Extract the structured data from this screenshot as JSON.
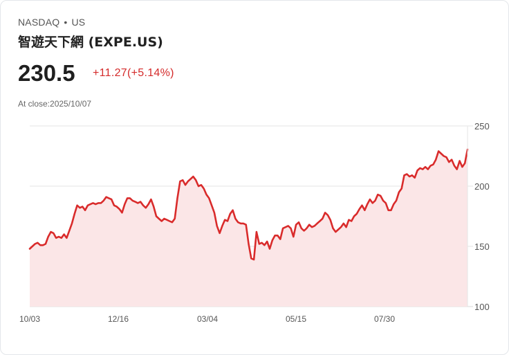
{
  "header": {
    "exchange": "NASDAQ",
    "separator": "•",
    "region": "US",
    "title": "智遊天下網 (EXPE.US)",
    "price": "230.5",
    "change": "+11.27(+5.14%)",
    "close_label": "At close:2025/10/07"
  },
  "colors": {
    "line": "#d92b2b",
    "fill": "#fbe6e7",
    "grid": "#e3e3e3",
    "change": "#d42a2a"
  },
  "chart_data": {
    "type": "area",
    "title": "智遊天下網 (EXPE.US)",
    "xlabel": "",
    "ylabel": "",
    "ylim": [
      100,
      250
    ],
    "yticks": [
      100,
      150,
      200,
      250
    ],
    "xticks": [
      "10/03",
      "12/16",
      "03/04",
      "05/15",
      "07/30"
    ],
    "grid": true,
    "legend": "none",
    "x_range": [
      "2024/10/03",
      "2025/10/07"
    ],
    "values": [
      148,
      150,
      152,
      153,
      151,
      151,
      152,
      158,
      162,
      161,
      157,
      158,
      157,
      160,
      157,
      163,
      169,
      177,
      184,
      182,
      183,
      180,
      184,
      185,
      186,
      185,
      186,
      186,
      188,
      191,
      190,
      189,
      184,
      183,
      181,
      178,
      185,
      190,
      190,
      188,
      187,
      186,
      187,
      184,
      182,
      185,
      189,
      183,
      175,
      173,
      171,
      173,
      172,
      171,
      170,
      173,
      190,
      204,
      205,
      201,
      204,
      206,
      208,
      205,
      200,
      201,
      198,
      193,
      190,
      184,
      178,
      167,
      161,
      167,
      172,
      171,
      177,
      180,
      173,
      170,
      169,
      169,
      168,
      152,
      140,
      139,
      162,
      152,
      153,
      151,
      154,
      148,
      155,
      159,
      159,
      156,
      165,
      166,
      167,
      165,
      158,
      168,
      170,
      165,
      163,
      165,
      168,
      166,
      167,
      169,
      171,
      173,
      178,
      176,
      172,
      165,
      162,
      164,
      166,
      169,
      166,
      172,
      171,
      175,
      177,
      181,
      184,
      180,
      185,
      189,
      186,
      188,
      193,
      192,
      188,
      186,
      180,
      180,
      185,
      188,
      195,
      198,
      209,
      210,
      208,
      209,
      207,
      213,
      215,
      214,
      216,
      214,
      217,
      218,
      222,
      229,
      227,
      225,
      224,
      220,
      222,
      217,
      214,
      221,
      216,
      219,
      230.5
    ]
  }
}
